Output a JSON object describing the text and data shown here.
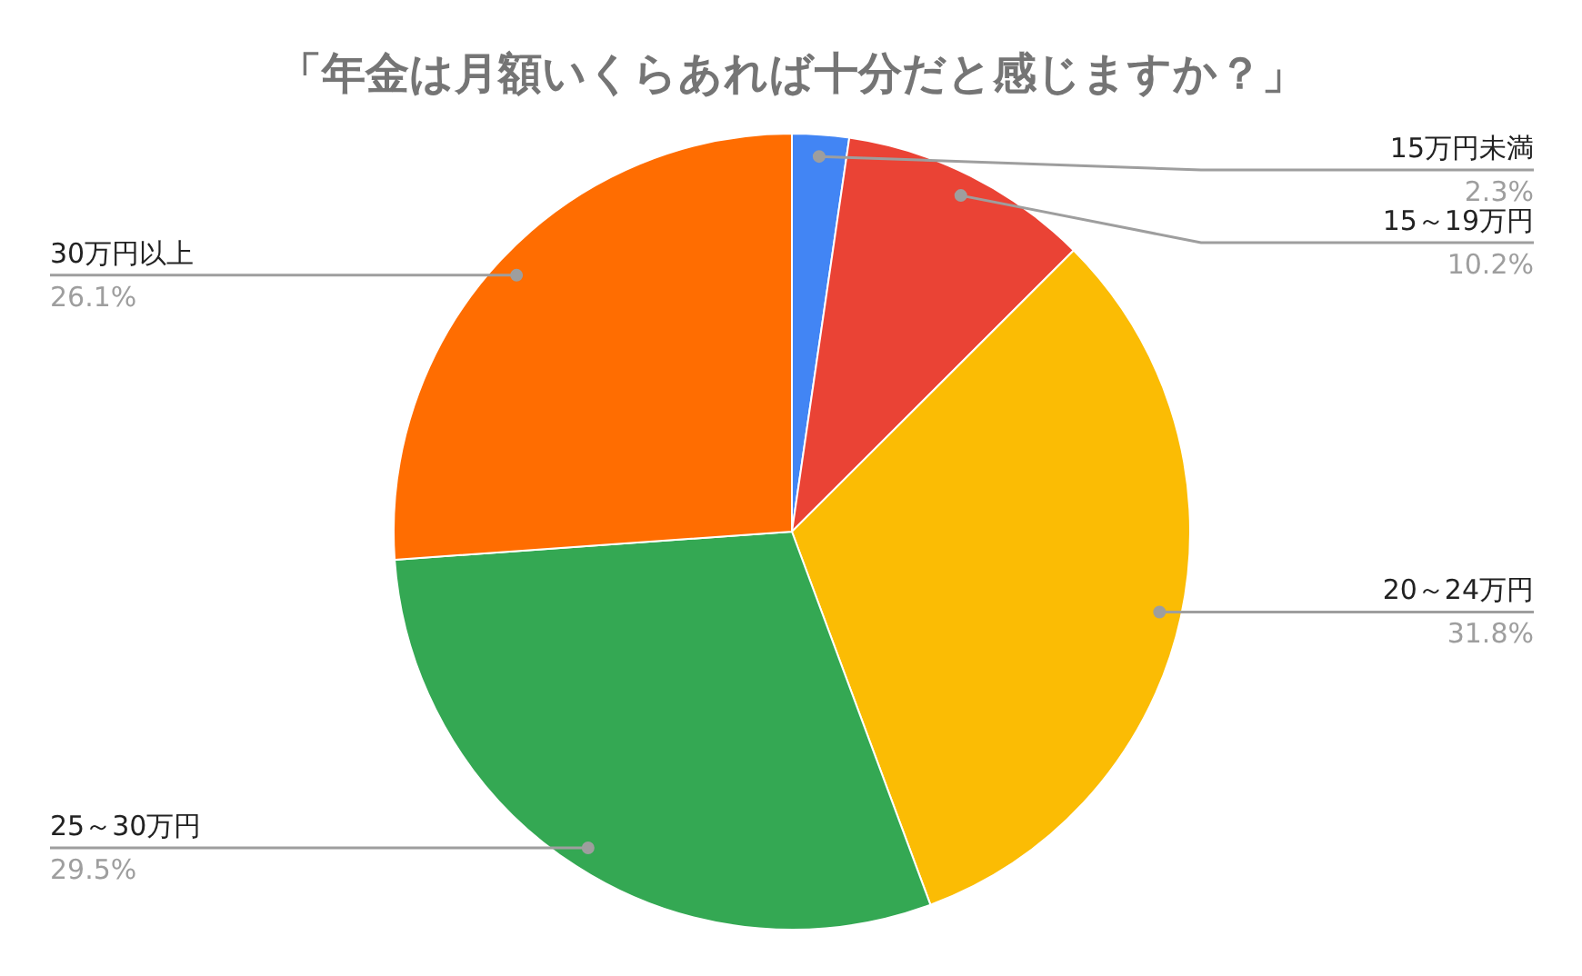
{
  "chart_data": {
    "type": "pie",
    "title": "「年金は月額いくらあれば十分だと感じますか？」",
    "categories": [
      "15万円未満",
      "15～19万円",
      "20～24万円",
      "25～30万円",
      "30万円以上"
    ],
    "values": [
      2.3,
      10.2,
      31.8,
      29.5,
      26.1
    ],
    "colors": [
      "#4285f4",
      "#ea4335",
      "#fbbc04",
      "#34a853",
      "#ff6d01"
    ],
    "value_labels": [
      "2.3%",
      "10.2%",
      "31.8%",
      "29.5%",
      "26.1%"
    ]
  }
}
